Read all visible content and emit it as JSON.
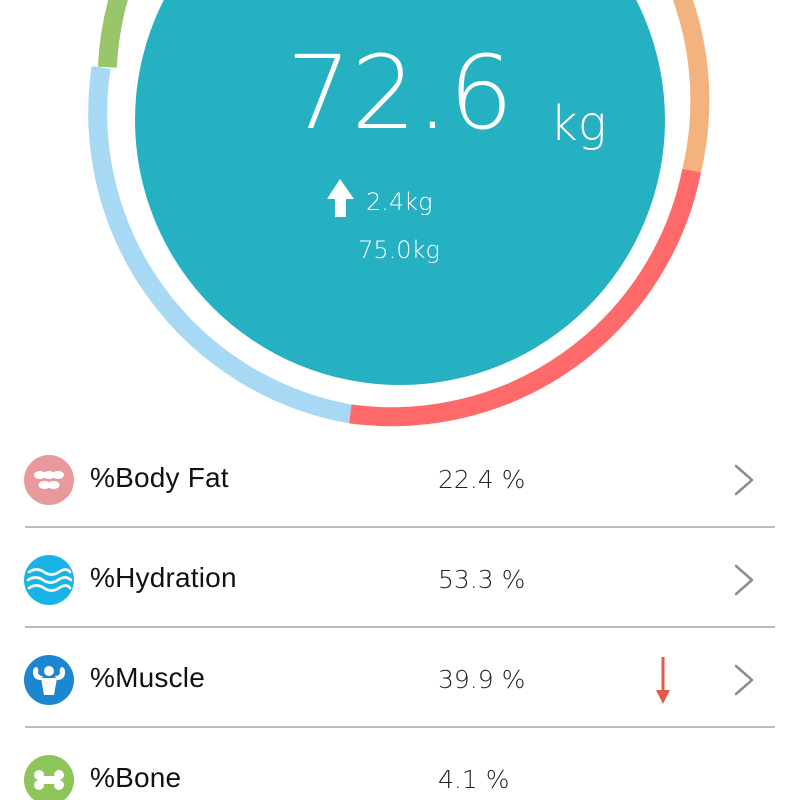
{
  "gauge": {
    "weight_value": "72.6",
    "weight_unit": "kg",
    "change_value": "2.4kg",
    "change_direction": "up",
    "target_value": "75.0kg",
    "colors": {
      "inner_circle": "#26b1c3",
      "ring_green": "#99c66b",
      "ring_orange": "#f2b37e",
      "ring_red": "#fe6a6a",
      "ring_blue": "#a7d8f4"
    }
  },
  "metrics": [
    {
      "label": "%Body Fat",
      "value": "22.4 %",
      "icon": "body-fat-icon",
      "icon_color": "#e8999c",
      "trend": null
    },
    {
      "label": "%Hydration",
      "value": "53.3 %",
      "icon": "hydration-icon",
      "icon_color": "#1ab3e6",
      "trend": null
    },
    {
      "label": "%Muscle",
      "value": "39.9 %",
      "icon": "muscle-icon",
      "icon_color": "#1d86d0",
      "trend": "down",
      "trend_color": "#e45a45"
    },
    {
      "label": "%Bone",
      "value": "4.1 %",
      "icon": "bone-icon",
      "icon_color": "#8dc55a",
      "trend": null
    }
  ]
}
